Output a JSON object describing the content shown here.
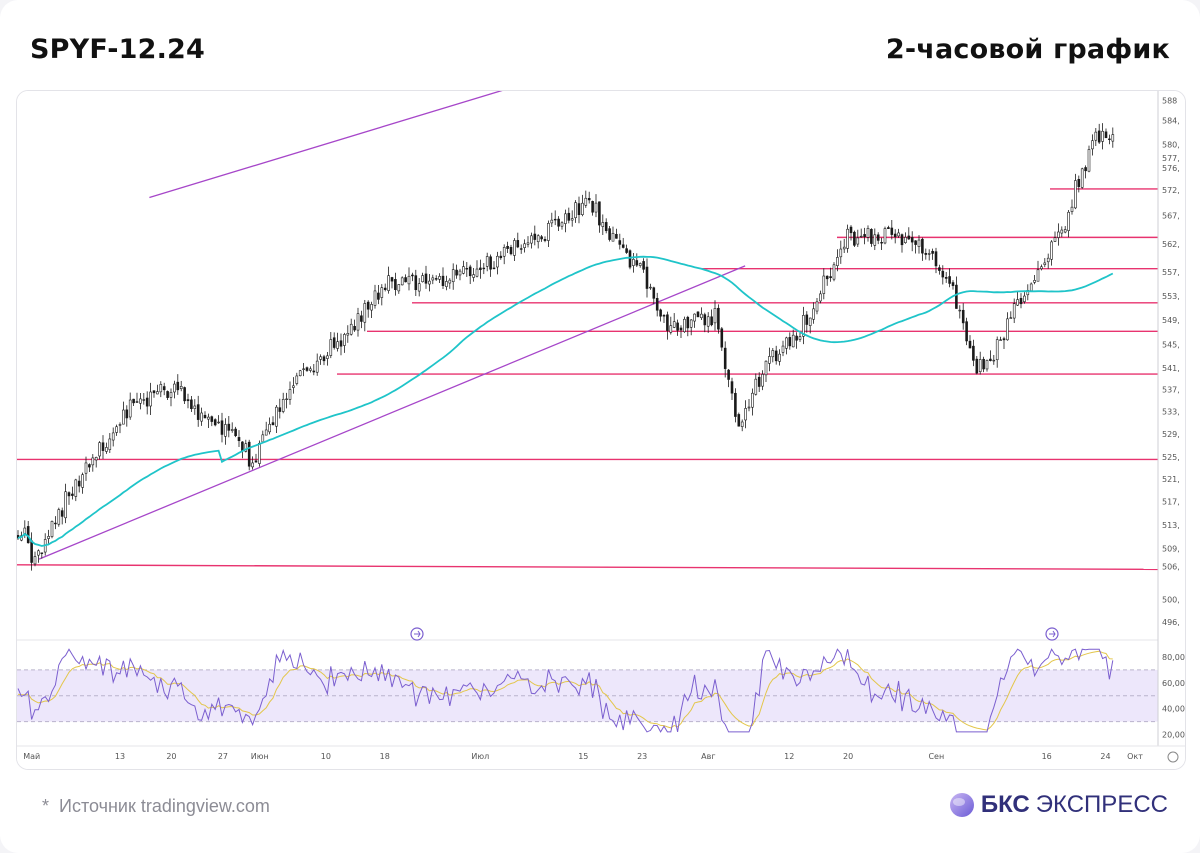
{
  "header": {
    "ticker": "SPYF-12.24",
    "timeframe": "2-часовой график"
  },
  "footer": {
    "source_star": "*",
    "source_text": "Источник tradingview.com",
    "logo_brand": "БКС",
    "logo_word": "ЭКСПРЕСС"
  },
  "colors": {
    "candles": "#1a1a1a",
    "moving_average": "#1fc4c9",
    "support_resistance": "#e8336f",
    "trendline": "#a646c9",
    "rsi_line": "#7b5fcf",
    "rsi_signal": "#e3c64a",
    "rsi_band": "#ede7fb",
    "logo": "#31307a"
  },
  "chart_data": [
    {
      "type": "candlestick",
      "title": "",
      "x_ticks": [
        "Май",
        "13",
        "20",
        "27",
        "Июн",
        "10",
        "18",
        "Июл",
        "15",
        "23",
        "Авг",
        "12",
        "20",
        "Сен",
        "16",
        "24",
        "Окт"
      ],
      "y_ticks": [
        "588",
        "584,",
        "580,",
        "577,",
        "576,",
        "572,",
        "567,",
        "562,",
        "557,",
        "553,",
        "549,",
        "545,",
        "541,",
        "537,",
        "533,",
        "529,",
        "525,",
        "521,",
        "517,",
        "513,",
        "509,",
        "506,",
        "500,",
        "496,"
      ],
      "ylim": [
        494,
        589
      ],
      "horizontal_levels": [
        506.5,
        525,
        540,
        547.5,
        552.5,
        554,
        558.5,
        564,
        572.5
      ],
      "trendlines": [
        {
          "name": "channel-top",
          "from": [
            "2024-05-17",
            571
          ],
          "to": [
            "2024-07-30",
            600
          ]
        },
        {
          "name": "trend-support",
          "from": [
            "2024-05-02",
            507.5
          ],
          "to": [
            "2024-08-06",
            559
          ]
        }
      ],
      "moving_average": "cyan smoothing line, ~516 in mid-May to ~563 late Sep",
      "price_path": [
        [
          "2024-04-30",
          512
        ],
        [
          "2024-05-01",
          508
        ],
        [
          "2024-05-02",
          507.5
        ],
        [
          "2024-05-06",
          519
        ],
        [
          "2024-05-10",
          526
        ],
        [
          "2024-05-15",
          535
        ],
        [
          "2024-05-21",
          538
        ],
        [
          "2024-05-24",
          532
        ],
        [
          "2024-05-29",
          529
        ],
        [
          "2024-05-31",
          524
        ],
        [
          "2024-06-05",
          538
        ],
        [
          "2024-06-12",
          546
        ],
        [
          "2024-06-14",
          549
        ],
        [
          "2024-06-18",
          556
        ],
        [
          "2024-06-26",
          556
        ],
        [
          "2024-07-03",
          560
        ],
        [
          "2024-07-10",
          565
        ],
        [
          "2024-07-16",
          570.5
        ],
        [
          "2024-07-18",
          565
        ],
        [
          "2024-07-24",
          556
        ],
        [
          "2024-07-26",
          549
        ],
        [
          "2024-08-02",
          550
        ],
        [
          "2024-08-05",
          531
        ],
        [
          "2024-08-07",
          537
        ],
        [
          "2024-08-09",
          542
        ],
        [
          "2024-08-13",
          547
        ],
        [
          "2024-08-16",
          554
        ],
        [
          "2024-08-20",
          564
        ],
        [
          "2024-08-26",
          564
        ],
        [
          "2024-08-30",
          563
        ],
        [
          "2024-09-03",
          556
        ],
        [
          "2024-09-06",
          541
        ],
        [
          "2024-09-09",
          544
        ],
        [
          "2024-09-12",
          553
        ],
        [
          "2024-09-16",
          560
        ],
        [
          "2024-09-19",
          568
        ],
        [
          "2024-09-20",
          573
        ],
        [
          "2024-09-23",
          582
        ],
        [
          "2024-09-27",
          579
        ]
      ]
    },
    {
      "type": "line",
      "title": "",
      "indicator": "RSI",
      "y_ticks": [
        "80,00",
        "60,00",
        "40,00",
        "20,00"
      ],
      "ylim": [
        15,
        90
      ],
      "band": [
        30,
        70
      ],
      "midline": 50
    }
  ]
}
